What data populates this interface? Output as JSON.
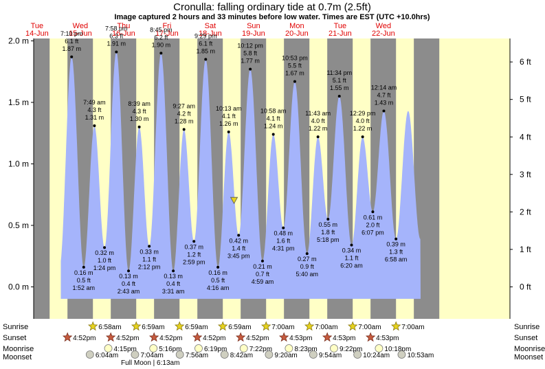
{
  "header": {
    "title": "Cronulla: falling  ordinary tide at 0.7m (2.5ft)",
    "subtitle": "Image captured 2 hours and 33 minutes before low water. Times are EST (UTC +10.0hrs)"
  },
  "colors": {
    "tide_fill": "#a5b4fb",
    "day_bg": "#ffffc6",
    "night_bg": "#8c8c8c",
    "day_label": "#e00000",
    "current_marker": "#e6d21e"
  },
  "chart_data": {
    "type": "area",
    "title": "Cronulla: falling  ordinary tide at 0.7m (2.5ft)",
    "y_left_ticks": [
      "0.0 m",
      "0.5 m",
      "1.0 m",
      "1.5 m",
      "2.0 m"
    ],
    "y_right_ticks": [
      "0 ft",
      "1 ft",
      "2 ft",
      "3 ft",
      "4 ft",
      "5 ft",
      "6 ft"
    ],
    "ylim_m": [
      -0.1,
      2.02
    ],
    "days": [
      {
        "name": "Tue",
        "date": "14-Jun"
      },
      {
        "name": "Wed",
        "date": "15-Jun"
      },
      {
        "name": "Thu",
        "date": "16-Jun"
      },
      {
        "name": "Fri",
        "date": "17-Jun"
      },
      {
        "name": "Sat",
        "date": "18-Jun"
      },
      {
        "name": "Sun",
        "date": "19-Jun"
      },
      {
        "name": "Mon",
        "date": "20-Jun"
      },
      {
        "name": "Tue",
        "date": "21-Jun"
      },
      {
        "name": "Wed",
        "date": "22-Jun"
      }
    ],
    "tides": [
      {
        "time": "7:10 pm",
        "ft": "6.1 ft",
        "m": 1.87,
        "type": "high",
        "hour": 19.17
      },
      {
        "time": "1:52 am",
        "ft": "0.5 ft",
        "m": 0.16,
        "type": "low",
        "hour": 25.87
      },
      {
        "time": "7:49 am",
        "ft": "4.3 ft",
        "m": 1.31,
        "type": "high",
        "hour": 31.82
      },
      {
        "time": "1:24 pm",
        "ft": "1.0 ft",
        "m": 0.32,
        "type": "low",
        "hour": 37.4
      },
      {
        "time": "7:58 pm",
        "ft": "6.3 ft",
        "m": 1.91,
        "type": "high",
        "hour": 43.97
      },
      {
        "time": "2:43 am",
        "ft": "0.4 ft",
        "m": 0.13,
        "type": "low",
        "hour": 50.72
      },
      {
        "time": "8:39 am",
        "ft": "4.3 ft",
        "m": 1.3,
        "type": "high",
        "hour": 56.65
      },
      {
        "time": "2:12 pm",
        "ft": "1.1 ft",
        "m": 0.33,
        "type": "low",
        "hour": 62.2
      },
      {
        "time": "8:45 pm",
        "ft": "6.2 ft",
        "m": 1.9,
        "type": "high",
        "hour": 68.75
      },
      {
        "time": "3:31 am",
        "ft": "0.4 ft",
        "m": 0.13,
        "type": "low",
        "hour": 75.52
      },
      {
        "time": "9:27 am",
        "ft": "4.2 ft",
        "m": 1.28,
        "type": "high",
        "hour": 81.45
      },
      {
        "time": "2:59 pm",
        "ft": "1.2 ft",
        "m": 0.37,
        "type": "low",
        "hour": 86.98
      },
      {
        "time": "9:29 pm",
        "ft": "6.1 ft",
        "m": 1.85,
        "type": "high",
        "hour": 93.48
      },
      {
        "time": "4:16 am",
        "ft": "0.5 ft",
        "m": 0.16,
        "type": "low",
        "hour": 100.27
      },
      {
        "time": "10:13 am",
        "ft": "4.1 ft",
        "m": 1.26,
        "type": "high",
        "hour": 106.22
      },
      {
        "time": "3:45 pm",
        "ft": "1.4 ft",
        "m": 0.42,
        "type": "low",
        "hour": 111.75
      },
      {
        "time": "10:12 pm",
        "ft": "5.8 ft",
        "m": 1.77,
        "type": "high",
        "hour": 118.2
      },
      {
        "time": "4:59 am",
        "ft": "0.7 ft",
        "m": 0.21,
        "type": "low",
        "hour": 124.98
      },
      {
        "time": "10:58 am",
        "ft": "4.1 ft",
        "m": 1.24,
        "type": "high",
        "hour": 130.97
      },
      {
        "time": "4:31 pm",
        "ft": "1.6 ft",
        "m": 0.48,
        "type": "low",
        "hour": 136.52
      },
      {
        "time": "10:53 pm",
        "ft": "5.5 ft",
        "m": 1.67,
        "type": "high",
        "hour": 142.88
      },
      {
        "time": "5:40 am",
        "ft": "0.9 ft",
        "m": 0.27,
        "type": "low",
        "hour": 149.67
      },
      {
        "time": "11:43 am",
        "ft": "4.0 ft",
        "m": 1.22,
        "type": "high",
        "hour": 155.72
      },
      {
        "time": "5:18 pm",
        "ft": "1.8 ft",
        "m": 0.55,
        "type": "low",
        "hour": 161.3
      },
      {
        "time": "11:34 pm",
        "ft": "5.1 ft",
        "m": 1.55,
        "type": "high",
        "hour": 167.57
      },
      {
        "time": "6:20 am",
        "ft": "1.1 ft",
        "m": 0.34,
        "type": "low",
        "hour": 174.33
      },
      {
        "time": "12:29 pm",
        "ft": "4.0 ft",
        "m": 1.22,
        "type": "high",
        "hour": 180.48
      },
      {
        "time": "6:07 pm",
        "ft": "2.0 ft",
        "m": 0.61,
        "type": "low",
        "hour": 186.12
      },
      {
        "time": "12:14 am",
        "ft": "4.7 ft",
        "m": 1.43,
        "type": "high",
        "hour": 192.23
      },
      {
        "time": "6:58 am",
        "ft": "1.3 ft",
        "m": 0.39,
        "type": "low",
        "hour": 198.97
      }
    ],
    "current_level_m": 0.7,
    "current_hour": 109.2
  },
  "almanac": {
    "row_labels": [
      "Sunrise",
      "Sunset",
      "Moonrise",
      "Moonset"
    ],
    "sunrise": [
      "6:58am",
      "6:59am",
      "6:59am",
      "6:59am",
      "7:00am",
      "7:00am",
      "7:00am",
      "7:00am"
    ],
    "sunset": [
      "4:52pm",
      "4:52pm",
      "4:52pm",
      "4:52pm",
      "4:52pm",
      "4:53pm",
      "4:53pm",
      "4:53pm"
    ],
    "moonrise": [
      "4:15pm",
      "5:16pm",
      "6:19pm",
      "7:22pm",
      "8:23pm",
      "9:22pm",
      "10:18pm"
    ],
    "moonset": [
      "6:04am",
      "7:04am",
      "7:56am",
      "8:42am",
      "9:20am",
      "9:54am",
      "10:24am",
      "10:53am"
    ],
    "full_moon": "Full Moon | 6:13am"
  }
}
